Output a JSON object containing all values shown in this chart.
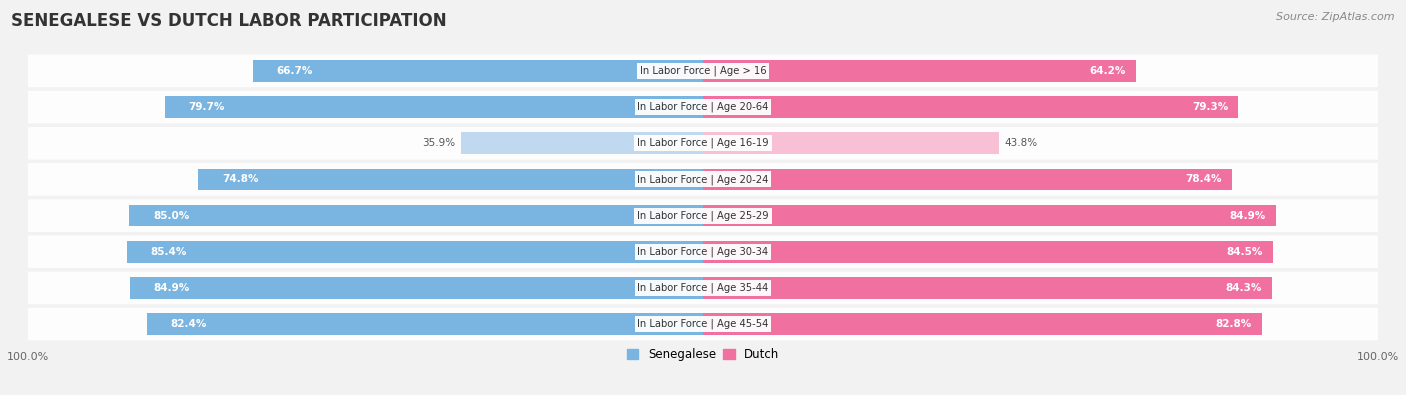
{
  "title": "SENEGALESE VS DUTCH LABOR PARTICIPATION",
  "source": "Source: ZipAtlas.com",
  "categories": [
    "In Labor Force | Age > 16",
    "In Labor Force | Age 20-64",
    "In Labor Force | Age 16-19",
    "In Labor Force | Age 20-24",
    "In Labor Force | Age 25-29",
    "In Labor Force | Age 30-34",
    "In Labor Force | Age 35-44",
    "In Labor Force | Age 45-54"
  ],
  "senegalese_values": [
    66.7,
    79.7,
    35.9,
    74.8,
    85.0,
    85.4,
    84.9,
    82.4
  ],
  "dutch_values": [
    64.2,
    79.3,
    43.8,
    78.4,
    84.9,
    84.5,
    84.3,
    82.8
  ],
  "senegalese_labels": [
    "66.7%",
    "79.7%",
    "35.9%",
    "74.8%",
    "85.0%",
    "85.4%",
    "84.9%",
    "82.4%"
  ],
  "dutch_labels": [
    "64.2%",
    "79.3%",
    "43.8%",
    "78.4%",
    "84.9%",
    "84.5%",
    "84.3%",
    "82.8%"
  ],
  "color_senegalese_full": "#7ab4e0",
  "color_senegalese_light": "#c0d8f0",
  "color_dutch_full": "#f070a0",
  "color_dutch_light": "#f8c0d4",
  "background_color": "#f2f2f2",
  "title_fontsize": 12,
  "label_fontsize": 8,
  "axis_max": 100.0,
  "legend_labels": [
    "Senegalese",
    "Dutch"
  ]
}
